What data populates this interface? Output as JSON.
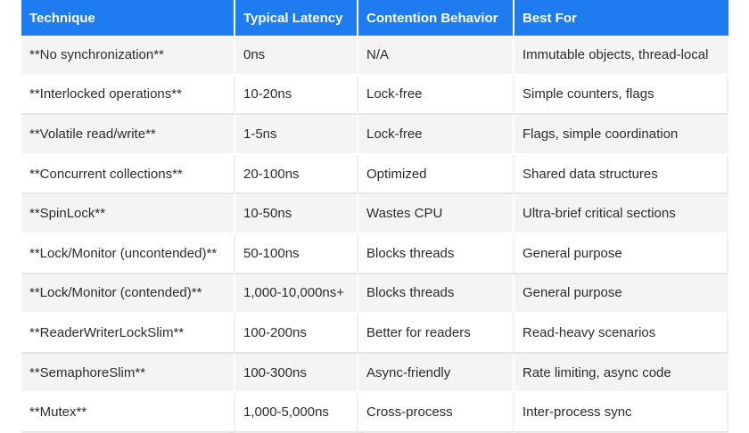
{
  "table": {
    "headers": [
      "Technique",
      "Typical Latency",
      "Contention Behavior",
      "Best For"
    ],
    "rows": [
      [
        "**No synchronization**",
        "0ns",
        "N/A",
        "Immutable objects, thread-local"
      ],
      [
        "**Interlocked operations**",
        "10-20ns",
        "Lock-free",
        "Simple counters, flags"
      ],
      [
        "**Volatile read/write**",
        "1-5ns",
        "Lock-free",
        "Flags, simple coordination"
      ],
      [
        "**Concurrent collections**",
        "20-100ns",
        "Optimized",
        "Shared data structures"
      ],
      [
        "**SpinLock**",
        "10-50ns",
        "Wastes CPU",
        "Ultra-brief critical sections"
      ],
      [
        "**Lock/Monitor (uncontended)**",
        "50-100ns",
        "Blocks threads",
        "General purpose"
      ],
      [
        "**Lock/Monitor (contended)**",
        "1,000-10,000ns+",
        "Blocks threads",
        "General purpose"
      ],
      [
        "**ReaderWriterLockSlim**",
        "100-200ns",
        "Better for readers",
        "Read-heavy scenarios"
      ],
      [
        "**SemaphoreSlim**",
        "100-300ns",
        "Async-friendly",
        "Rate limiting, async code"
      ],
      [
        "**Mutex**",
        "1,000-5,000ns",
        "Cross-process",
        "Inter-process sync"
      ]
    ]
  }
}
